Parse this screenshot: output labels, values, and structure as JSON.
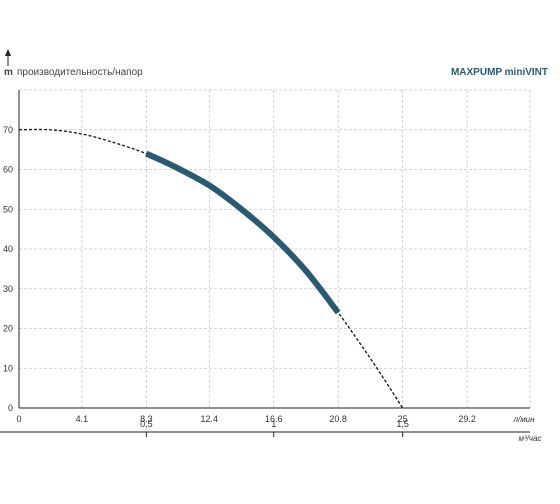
{
  "header": {
    "y_unit": "m",
    "y_caption": "производительность/напор",
    "title": "MAXPUMP miniVINT"
  },
  "chart_data": {
    "type": "line",
    "title": "MAXPUMP miniVINT",
    "ylabel": "производительность/напор",
    "y_unit": "m",
    "ylim": [
      0,
      80
    ],
    "y_ticks": [
      "0",
      "10",
      "20",
      "30",
      "40",
      "50",
      "60",
      "70"
    ],
    "x_primary": {
      "unit": "л/мин",
      "lim": [
        0,
        33.3
      ],
      "ticks": [
        {
          "value": 0,
          "label": "0"
        },
        {
          "value": 4.1,
          "label": "4.1"
        },
        {
          "value": 8.3,
          "label": "8.3"
        },
        {
          "value": 12.4,
          "label": "12.4"
        },
        {
          "value": 16.6,
          "label": "16.6"
        },
        {
          "value": 20.8,
          "label": "20.8"
        },
        {
          "value": 25,
          "label": "25"
        },
        {
          "value": 29.2,
          "label": "29.2"
        }
      ]
    },
    "x_secondary": {
      "unit": "м³/час",
      "ticks": [
        {
          "value": 8.3,
          "label": "0,5"
        },
        {
          "value": 16.6,
          "label": "1"
        },
        {
          "value": 25,
          "label": "1,5"
        }
      ]
    },
    "grid": true,
    "series": [
      {
        "color": "#2a5a72",
        "points": [
          {
            "x": 0,
            "y": 70
          },
          {
            "x": 2,
            "y": 70
          },
          {
            "x": 4,
            "y": 69
          },
          {
            "x": 6,
            "y": 67
          },
          {
            "x": 8.3,
            "y": 64
          },
          {
            "x": 10,
            "y": 61
          },
          {
            "x": 12.4,
            "y": 56
          },
          {
            "x": 14.5,
            "y": 50
          },
          {
            "x": 16.6,
            "y": 43
          },
          {
            "x": 18.7,
            "y": 34.5
          },
          {
            "x": 20.8,
            "y": 24
          },
          {
            "x": 22,
            "y": 17.5
          },
          {
            "x": 23.5,
            "y": 9
          },
          {
            "x": 25,
            "y": 0
          }
        ],
        "solid_range": [
          8.3,
          20.8
        ]
      }
    ]
  }
}
